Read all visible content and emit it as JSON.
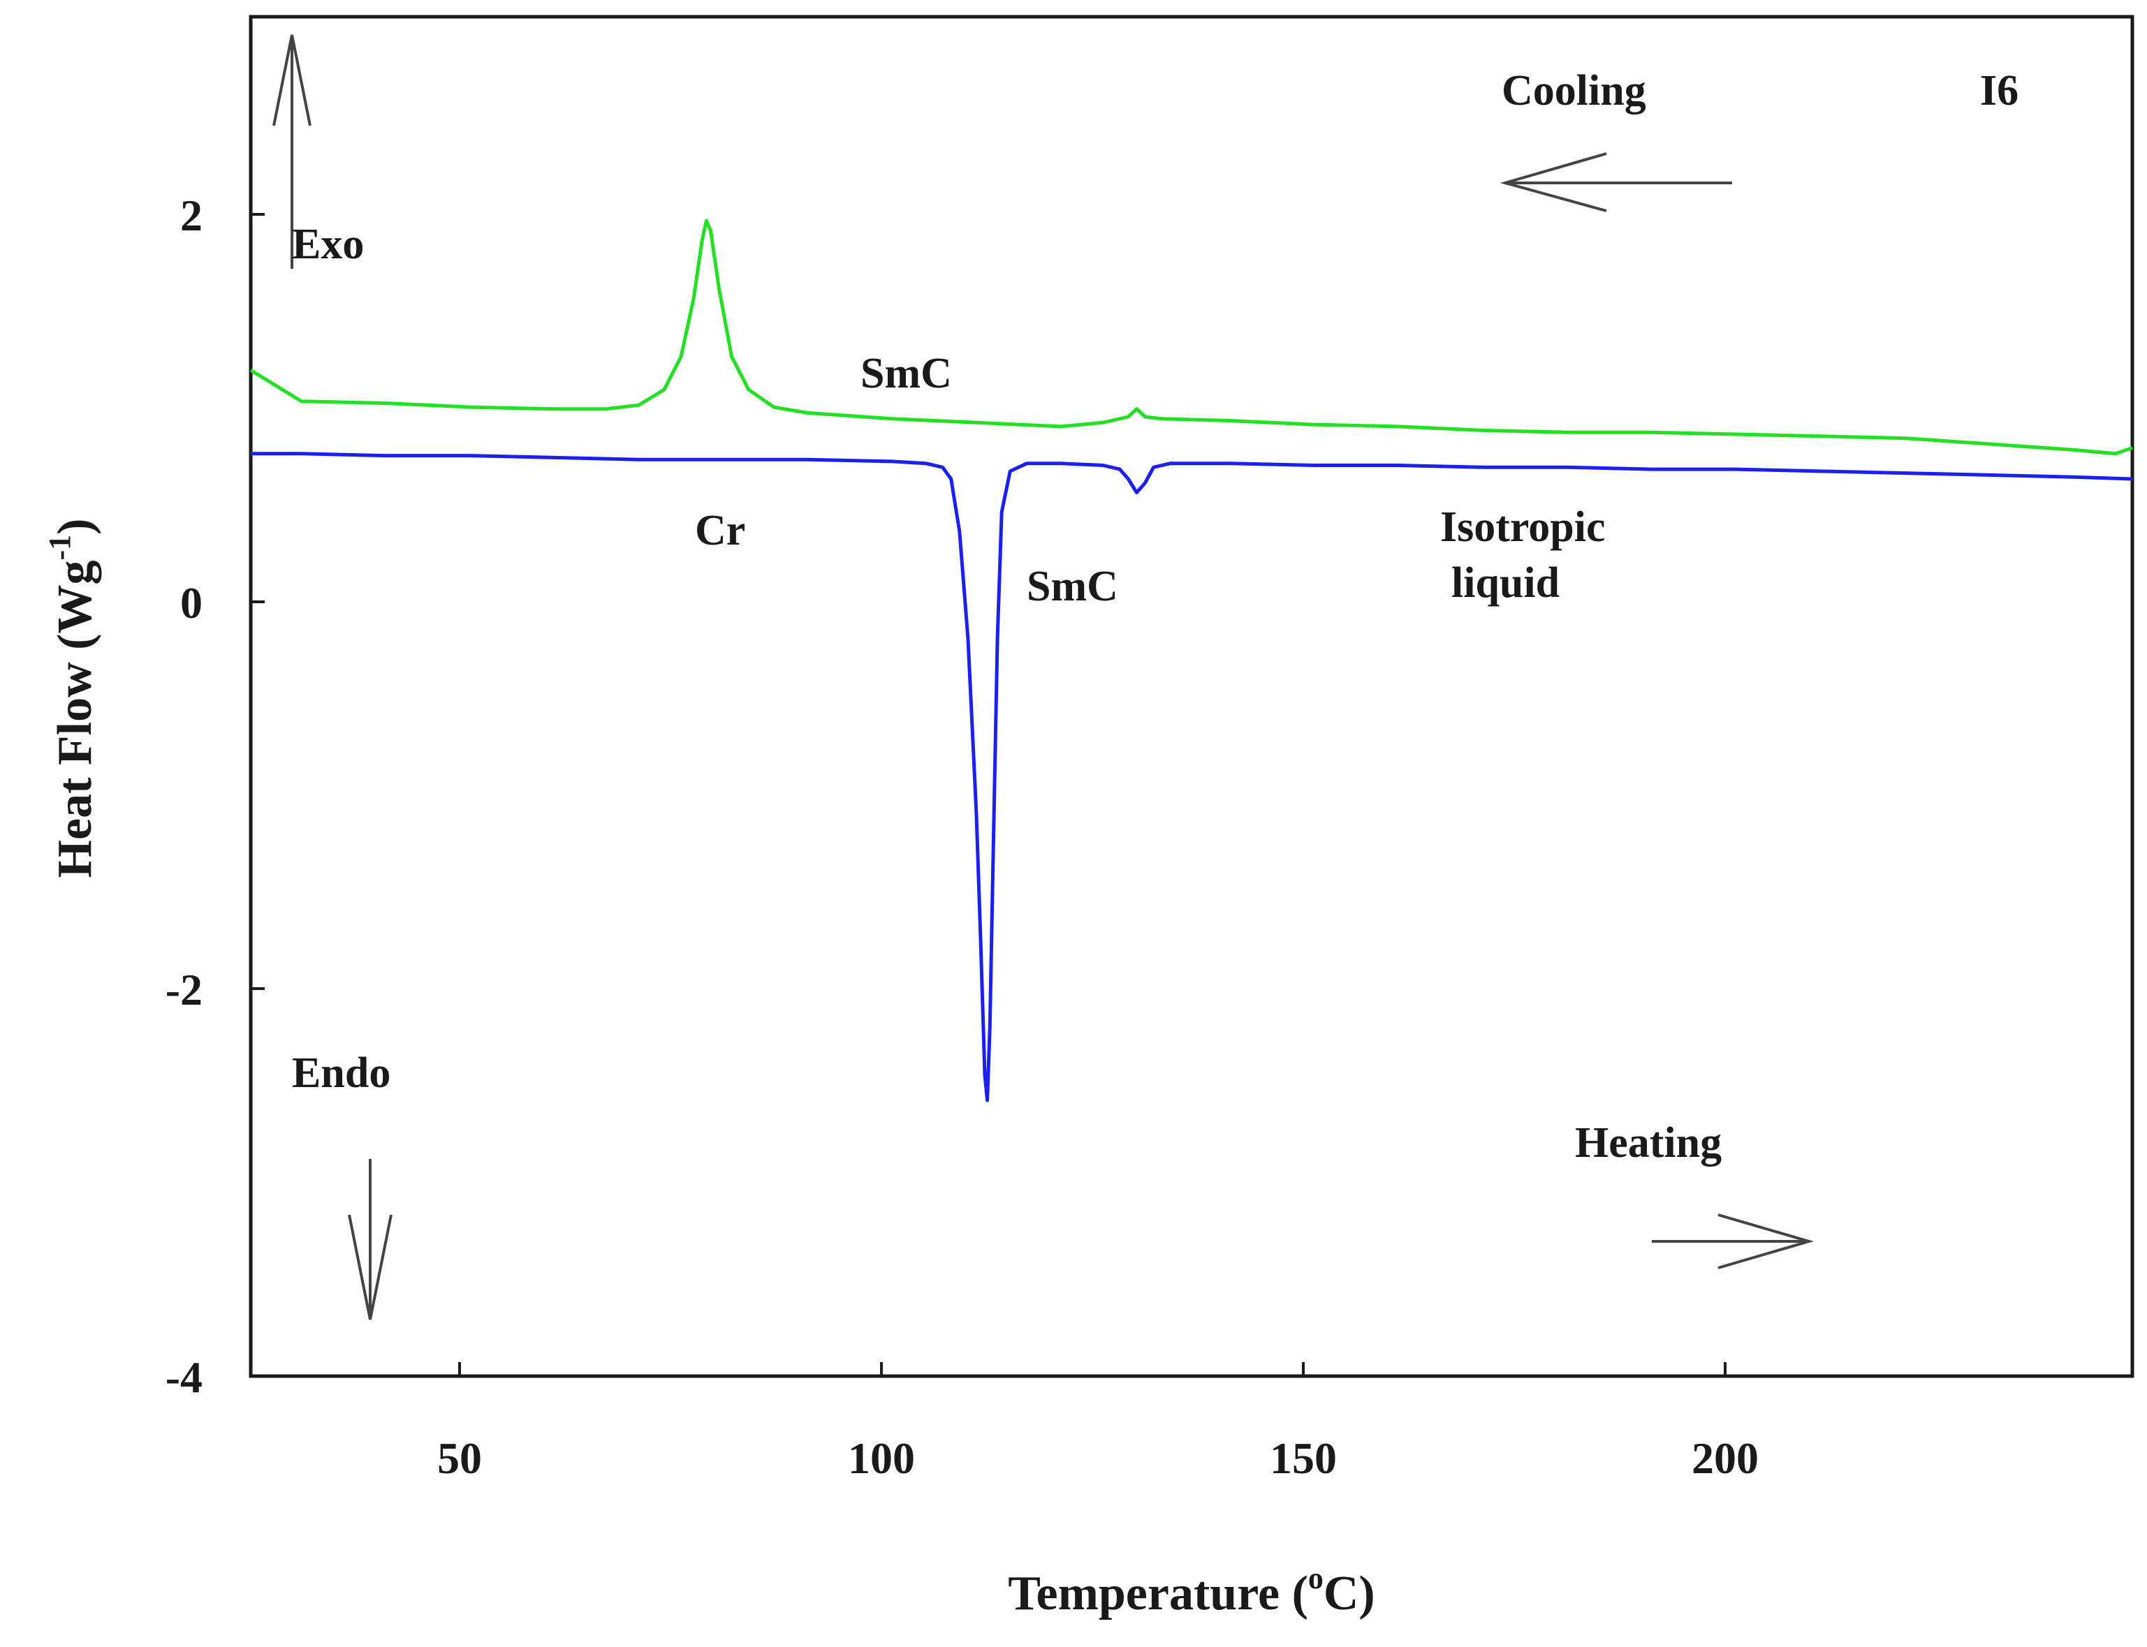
{
  "chart_data": {
    "type": "line",
    "title": "",
    "xlabel": "Temperature",
    "xlabel_unit_open": "(",
    "xlabel_unit_sup": "o",
    "xlabel_unit_rest": "C)",
    "ylabel": "Heat Flow (Wg",
    "ylabel_sup": "-1",
    "ylabel_close": ")",
    "xlim": [
      24,
      247
    ],
    "ylim": [
      -4,
      3
    ],
    "xticks": [
      "50",
      "100",
      "150",
      "200"
    ],
    "yticks": [
      "2",
      "0",
      "-2",
      "-4"
    ],
    "grid": false,
    "legend": "none",
    "series": [
      {
        "color": "#22e022",
        "x": [
          24,
          30,
          40,
          50,
          60,
          66,
          70,
          73,
          75,
          76.5,
          77.5,
          78,
          78.5,
          79.5,
          81,
          83,
          86,
          90,
          100,
          110,
          120,
          125,
          128,
          129,
          130,
          132,
          140,
          150,
          160,
          170,
          180,
          190,
          200,
          210,
          220,
          230,
          240,
          245,
          247
        ],
        "y": [
          1.18,
          1.02,
          1.01,
          0.99,
          0.98,
          0.98,
          1.0,
          1.08,
          1.25,
          1.55,
          1.85,
          1.95,
          1.9,
          1.6,
          1.25,
          1.08,
          0.99,
          0.96,
          0.93,
          0.91,
          0.89,
          0.91,
          0.94,
          0.98,
          0.94,
          0.93,
          0.92,
          0.9,
          0.89,
          0.87,
          0.86,
          0.86,
          0.85,
          0.84,
          0.83,
          0.8,
          0.77,
          0.75,
          0.78
        ]
      },
      {
        "color": "#1b20ee",
        "x": [
          24,
          30,
          40,
          50,
          60,
          70,
          80,
          90,
          100,
          104,
          106,
          107,
          108,
          109,
          110,
          110.5,
          111,
          111.3,
          111.6,
          112,
          112.5,
          113,
          114,
          116,
          120,
          125,
          127,
          128,
          129,
          130,
          131,
          133,
          140,
          150,
          160,
          170,
          180,
          190,
          200,
          210,
          220,
          230,
          240,
          247
        ],
        "y": [
          0.75,
          0.75,
          0.74,
          0.74,
          0.73,
          0.72,
          0.72,
          0.72,
          0.71,
          0.7,
          0.68,
          0.62,
          0.35,
          -0.2,
          -1.1,
          -1.75,
          -2.45,
          -2.58,
          -2.2,
          -1.3,
          -0.2,
          0.45,
          0.66,
          0.7,
          0.7,
          0.69,
          0.67,
          0.62,
          0.55,
          0.6,
          0.68,
          0.7,
          0.7,
          0.69,
          0.69,
          0.68,
          0.68,
          0.67,
          0.67,
          0.66,
          0.65,
          0.64,
          0.63,
          0.62
        ]
      }
    ],
    "annotations": {
      "exo": "Exo",
      "endo": "Endo",
      "cooling": "Cooling",
      "heating": "Heating",
      "sample": "I6",
      "smc_cooling": "SmC",
      "smc_heating": "SmC",
      "cr": "Cr",
      "isotropic_line1": "Isotropic",
      "isotropic_line2": "liquid"
    },
    "colors": {
      "axis": "#1a1a1a",
      "arrow": "#444444",
      "background": "#ffffff"
    }
  }
}
